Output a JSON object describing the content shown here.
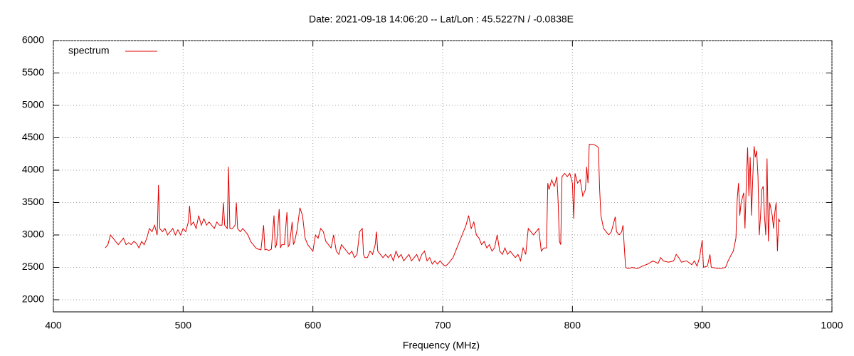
{
  "chart_data": {
    "type": "line",
    "title": "Date: 2021-09-18 14:06:20  --  Lat/Lon : 45.5227N / -0.0838E",
    "x_label": "Frequency (MHz)",
    "xlim": [
      400,
      1000
    ],
    "xticks": [
      400,
      500,
      600,
      700,
      800,
      900,
      1000
    ],
    "ylim": [
      1813,
      6000
    ],
    "yticks": [
      2000,
      2500,
      3000,
      3500,
      4000,
      4500,
      5000,
      5500,
      6000
    ],
    "grid": true,
    "legend": "top-left",
    "series": [
      {
        "name": "spectrum",
        "color": "#e00000",
        "x": [
          440,
          442,
          444,
          446,
          448,
          450,
          452,
          454,
          456,
          458,
          460,
          462,
          464,
          466,
          468,
          470,
          472,
          474,
          476,
          478,
          480,
          481,
          482,
          484,
          486,
          488,
          490,
          492,
          494,
          496,
          498,
          500,
          502,
          504,
          505,
          506,
          508,
          510,
          512,
          514,
          516,
          518,
          520,
          522,
          524,
          526,
          528,
          530,
          531,
          532,
          534,
          535,
          536,
          538,
          540,
          541,
          542,
          544,
          546,
          548,
          550,
          552,
          554,
          556,
          558,
          560,
          562,
          563,
          564,
          566,
          568,
          570,
          571,
          572,
          574,
          575,
          576,
          578,
          580,
          581,
          582,
          584,
          585,
          586,
          588,
          590,
          592,
          594,
          596,
          598,
          600,
          602,
          604,
          606,
          608,
          610,
          612,
          614,
          616,
          618,
          620,
          622,
          624,
          626,
          628,
          630,
          632,
          634,
          636,
          638,
          639,
          640,
          642,
          644,
          646,
          648,
          649,
          650,
          652,
          654,
          656,
          658,
          660,
          662,
          664,
          666,
          668,
          670,
          672,
          674,
          676,
          678,
          680,
          682,
          684,
          686,
          688,
          690,
          692,
          694,
          696,
          698,
          700,
          702,
          704,
          706,
          708,
          710,
          712,
          714,
          716,
          718,
          720,
          722,
          724,
          726,
          728,
          730,
          732,
          734,
          736,
          738,
          740,
          742,
          744,
          746,
          748,
          750,
          752,
          754,
          756,
          758,
          760,
          762,
          764,
          766,
          768,
          770,
          772,
          774,
          776,
          778,
          780,
          781,
          782,
          784,
          786,
          788,
          789,
          790,
          791,
          792,
          794,
          796,
          798,
          800,
          801,
          802,
          804,
          806,
          808,
          810,
          811,
          812,
          813,
          816,
          818,
          820,
          821,
          822,
          824,
          826,
          828,
          830,
          832,
          833,
          834,
          836,
          838,
          839,
          840,
          841,
          843,
          846,
          850,
          854,
          858,
          862,
          866,
          868,
          870,
          874,
          878,
          880,
          882,
          884,
          888,
          892,
          894,
          896,
          898,
          900,
          901,
          904,
          906,
          907,
          910,
          914,
          918,
          920,
          922,
          924,
          926,
          927,
          928,
          929,
          930,
          932,
          933,
          934,
          935,
          936,
          937,
          938,
          939,
          940,
          941,
          942,
          943,
          944,
          945,
          946,
          947,
          948,
          949,
          950,
          951,
          952,
          953,
          954,
          955,
          956,
          957,
          958,
          959,
          960
        ],
        "values": [
          2800,
          2850,
          3000,
          2950,
          2900,
          2850,
          2900,
          2950,
          2850,
          2880,
          2850,
          2900,
          2870,
          2800,
          2900,
          2850,
          2950,
          3100,
          3050,
          3150,
          3000,
          3770,
          3100,
          3050,
          3100,
          3000,
          3050,
          3100,
          3000,
          3080,
          3000,
          3100,
          3050,
          3200,
          3450,
          3150,
          3200,
          3100,
          3300,
          3150,
          3250,
          3150,
          3200,
          3150,
          3100,
          3200,
          3150,
          3150,
          3500,
          3150,
          3100,
          4050,
          3100,
          3100,
          3150,
          3500,
          3100,
          3050,
          3100,
          3050,
          3000,
          2900,
          2850,
          2800,
          2780,
          2770,
          3150,
          2770,
          2780,
          2760,
          2780,
          3300,
          2800,
          2850,
          3400,
          2800,
          2850,
          2850,
          3350,
          2820,
          2850,
          3200,
          2850,
          2900,
          3100,
          3420,
          3300,
          2950,
          2850,
          2800,
          2750,
          3000,
          2950,
          3100,
          3050,
          2900,
          2850,
          2800,
          3000,
          2750,
          2700,
          2850,
          2800,
          2750,
          2700,
          2750,
          2650,
          2700,
          3050,
          3100,
          2700,
          2650,
          2650,
          2750,
          2700,
          2850,
          3050,
          2750,
          2700,
          2650,
          2700,
          2650,
          2700,
          2600,
          2750,
          2650,
          2700,
          2600,
          2650,
          2700,
          2600,
          2650,
          2700,
          2600,
          2700,
          2750,
          2600,
          2650,
          2550,
          2600,
          2550,
          2600,
          2550,
          2520,
          2550,
          2600,
          2650,
          2750,
          2850,
          2950,
          3050,
          3150,
          3300,
          3100,
          3200,
          3000,
          2950,
          2850,
          2900,
          2800,
          2850,
          2750,
          2800,
          3000,
          2750,
          2700,
          2800,
          2700,
          2750,
          2700,
          2650,
          2700,
          2600,
          2800,
          2700,
          3100,
          3050,
          3000,
          3050,
          3100,
          2750,
          2800,
          2800,
          3800,
          3700,
          3850,
          3750,
          3900,
          3500,
          2900,
          2850,
          3900,
          3950,
          3900,
          3950,
          3800,
          3250,
          3950,
          3800,
          3850,
          3600,
          3700,
          4050,
          3800,
          4400,
          4400,
          4380,
          4350,
          3700,
          3300,
          3100,
          3050,
          3000,
          3050,
          3200,
          3280,
          3050,
          3000,
          3050,
          3150,
          2800,
          2500,
          2480,
          2500,
          2480,
          2520,
          2550,
          2600,
          2560,
          2650,
          2600,
          2580,
          2600,
          2700,
          2650,
          2580,
          2600,
          2540,
          2600,
          2520,
          2650,
          2920,
          2500,
          2520,
          2700,
          2500,
          2490,
          2480,
          2500,
          2600,
          2680,
          2750,
          2950,
          3550,
          3800,
          3300,
          3500,
          3650,
          3100,
          3800,
          4350,
          3600,
          4200,
          3300,
          3900,
          4370,
          4200,
          4300,
          3900,
          3000,
          3300,
          3700,
          3750,
          3300,
          3000,
          4180,
          2900,
          3500,
          3400,
          3300,
          3100,
          3350,
          3500,
          2750,
          3250,
          3200
        ]
      }
    ]
  }
}
